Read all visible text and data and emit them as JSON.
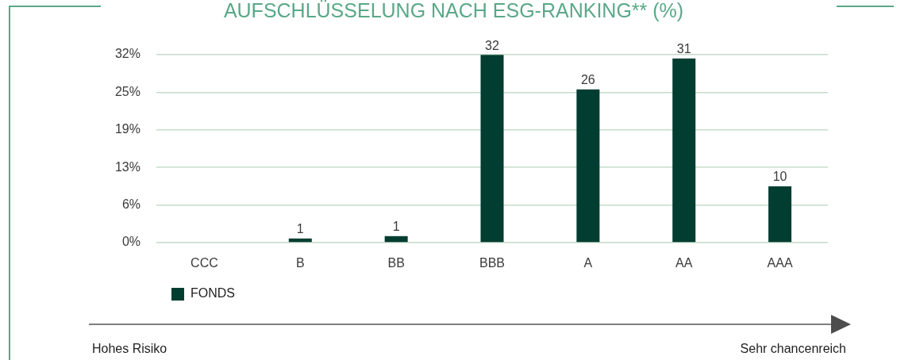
{
  "chart_data": {
    "type": "bar",
    "title": "AUFSCHLÜSSELUNG NACH ESG-RANKING** (%)",
    "categories": [
      "CCC",
      "B",
      "BB",
      "BBB",
      "A",
      "AA",
      "AAA"
    ],
    "series": [
      {
        "name": "FONDS",
        "color": "#013d30",
        "values": [
          0,
          0.7,
          1.1,
          31.7,
          25.9,
          31.1,
          9.5
        ],
        "value_labels": [
          null,
          "1",
          "1",
          "32",
          "26",
          "31",
          "10"
        ]
      }
    ],
    "ylim": [
      0,
      31.75
    ],
    "yticks": [
      {
        "value": 0,
        "label": "0%"
      },
      {
        "value": 6.35,
        "label": "6%"
      },
      {
        "value": 12.7,
        "label": "13%"
      },
      {
        "value": 19.05,
        "label": "19%"
      },
      {
        "value": 25.4,
        "label": "25%"
      },
      {
        "value": 31.75,
        "label": "32%"
      }
    ],
    "grid": "y",
    "legend": "bottom left",
    "annotations": [
      "Hohes Risiko",
      "Sehr chancenreich"
    ]
  }
}
